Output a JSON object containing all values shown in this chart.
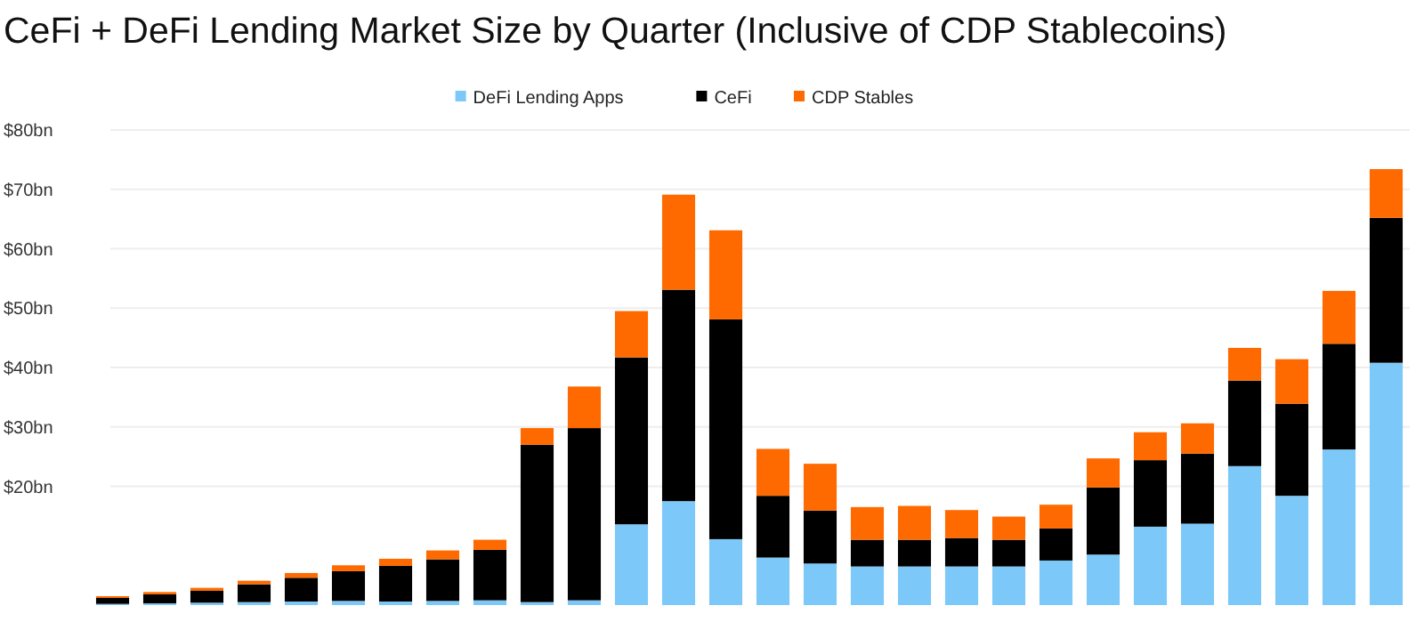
{
  "chart_data": {
    "type": "bar",
    "stacked": true,
    "title": "CeFi + DeFi Lending Market Size by Quarter (Inclusive of CDP Stablecoins)",
    "categories": [
      null,
      null,
      null,
      null,
      null,
      null,
      null,
      null,
      null,
      null,
      null,
      null,
      null,
      null,
      null,
      null,
      null,
      null,
      null,
      null,
      null,
      null,
      null,
      null,
      null,
      null,
      null,
      null
    ],
    "series": [
      {
        "name": "DeFi Lending Apps",
        "color": "#7cc8f8",
        "values": [
          0.2,
          0.3,
          0.4,
          0.5,
          0.6,
          0.7,
          0.6,
          0.7,
          0.8,
          0.5,
          0.8,
          13.6,
          17.5,
          11.1,
          8,
          7,
          6.5,
          6.5,
          6.5,
          6.5,
          7.5,
          8.5,
          13.2,
          13.7,
          23.4,
          18.4,
          26.2,
          40.8
        ]
      },
      {
        "name": "CeFi",
        "color": "#000000",
        "values": [
          1,
          1.5,
          2,
          3,
          4,
          5,
          6,
          7,
          8.5,
          26.5,
          29,
          28.1,
          35.6,
          37,
          10.4,
          8.9,
          4.5,
          4.5,
          4.8,
          4.5,
          5.4,
          11.3,
          11.2,
          11.8,
          14.4,
          15.5,
          17.8,
          24.4
        ]
      },
      {
        "name": "CDP Stables",
        "color": "#ff6a00",
        "values": [
          0.3,
          0.4,
          0.5,
          0.6,
          0.8,
          1,
          1.2,
          1.5,
          1.7,
          2.8,
          7,
          7.8,
          16,
          15,
          7.9,
          7.9,
          5.5,
          5.7,
          4.7,
          3.9,
          4,
          4.9,
          4.7,
          5.1,
          5.5,
          7.5,
          8.9,
          8.2
        ]
      }
    ],
    "ylim": [
      0,
      80
    ],
    "yticks": [
      {
        "value": 20,
        "label": "$20bn"
      },
      {
        "value": 30,
        "label": "$30bn"
      },
      {
        "value": 40,
        "label": "$40bn"
      },
      {
        "value": 50,
        "label": "$50bn"
      },
      {
        "value": 60,
        "label": "$60bn"
      },
      {
        "value": 70,
        "label": "$70bn"
      },
      {
        "value": 80,
        "label": "$80bn"
      }
    ],
    "grid": "y",
    "legend": "top"
  }
}
